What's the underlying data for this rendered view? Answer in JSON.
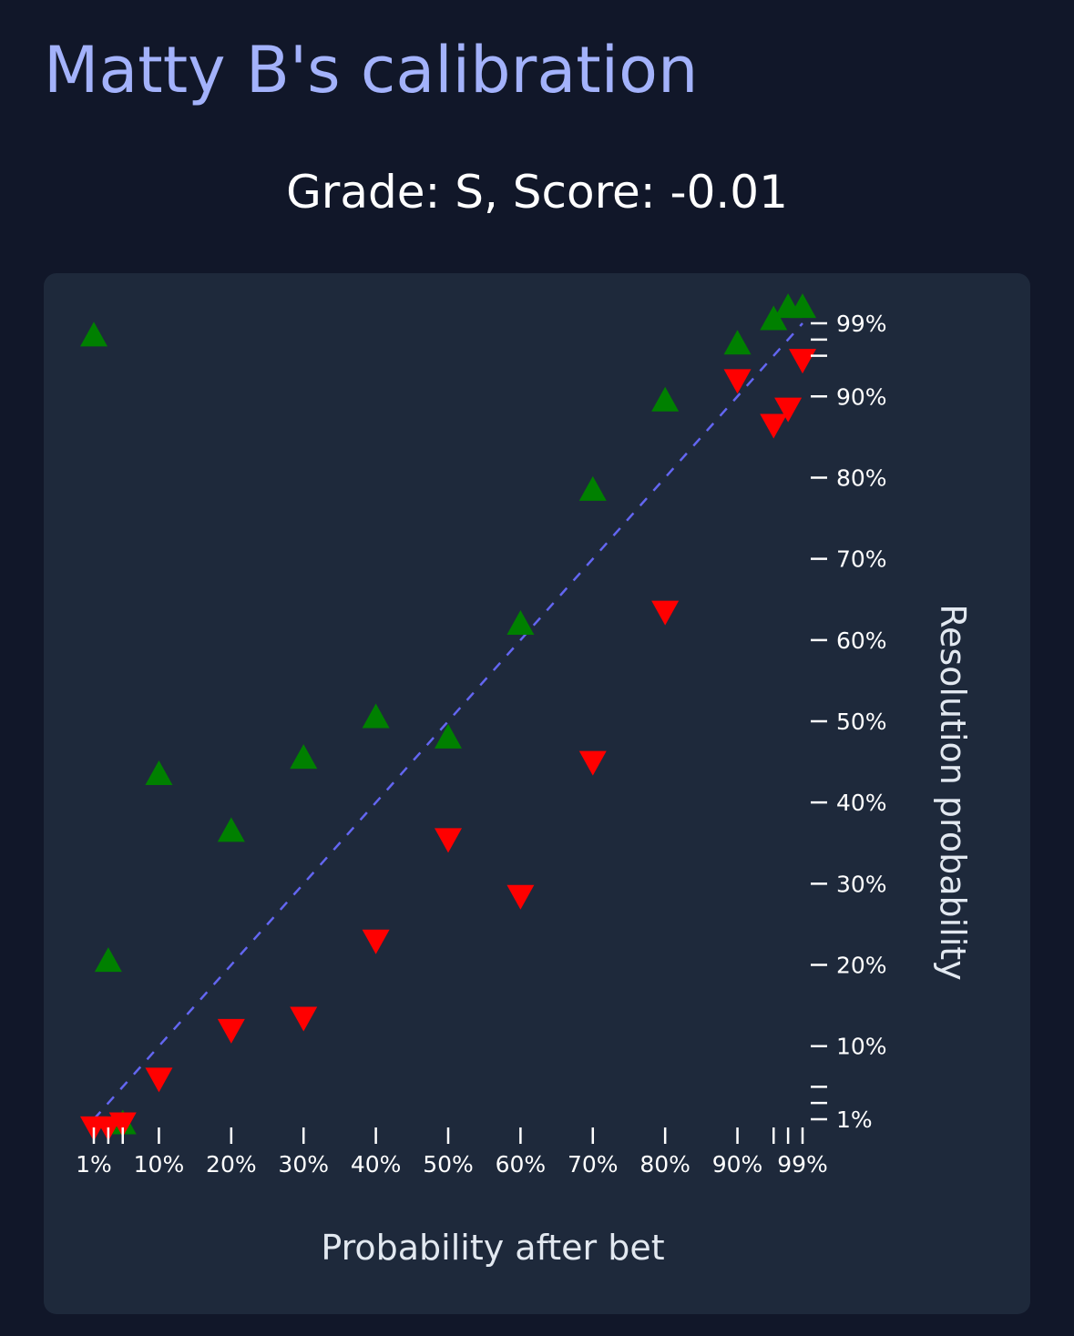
{
  "header": {
    "title": "Matty B's calibration"
  },
  "chart_data": {
    "type": "scatter",
    "title": "Grade: S, Score: -0.01",
    "xlabel": "Probability after bet",
    "ylabel": "Resolution probability",
    "xlim": [
      1,
      99
    ],
    "ylim": [
      1,
      99
    ],
    "x_ticks": [
      1,
      10,
      20,
      30,
      40,
      50,
      60,
      70,
      80,
      90,
      99
    ],
    "x_tick_labels": [
      "1%",
      "10%",
      "20%",
      "30%",
      "40%",
      "50%",
      "60%",
      "70%",
      "80%",
      "90%",
      "99%"
    ],
    "x_minor_ticks": [
      3,
      5,
      95,
      97
    ],
    "y_ticks": [
      1,
      10,
      20,
      30,
      40,
      50,
      60,
      70,
      80,
      90,
      99
    ],
    "y_tick_labels": [
      "1%",
      "10%",
      "20%",
      "30%",
      "40%",
      "50%",
      "60%",
      "70%",
      "80%",
      "90%",
      "99%"
    ],
    "y_minor_ticks": [
      3,
      5,
      95,
      97
    ],
    "reference_line": {
      "from": [
        1,
        1
      ],
      "to": [
        99,
        99
      ],
      "style": "dashed",
      "color": "#6366f1"
    },
    "series": [
      {
        "marker": "triangle-up",
        "color": "#008000",
        "points": [
          {
            "x": 1,
            "y": 97.5
          },
          {
            "x": 3,
            "y": 20.5
          },
          {
            "x": 5,
            "y": 0.5
          },
          {
            "x": 10,
            "y": 43.5
          },
          {
            "x": 20,
            "y": 36.5
          },
          {
            "x": 30,
            "y": 45.5
          },
          {
            "x": 40,
            "y": 50.5
          },
          {
            "x": 50,
            "y": 48
          },
          {
            "x": 60,
            "y": 62
          },
          {
            "x": 70,
            "y": 78.5
          },
          {
            "x": 80,
            "y": 89.5
          },
          {
            "x": 90,
            "y": 96.5
          },
          {
            "x": 95,
            "y": 99.5
          },
          {
            "x": 97,
            "y": 101
          },
          {
            "x": 99,
            "y": 101
          }
        ]
      },
      {
        "marker": "triangle-down",
        "color": "#ff0000",
        "points": [
          {
            "x": 1,
            "y": 0
          },
          {
            "x": 3,
            "y": 0
          },
          {
            "x": 5,
            "y": 0.5
          },
          {
            "x": 10,
            "y": 6
          },
          {
            "x": 20,
            "y": 12
          },
          {
            "x": 30,
            "y": 13.5
          },
          {
            "x": 40,
            "y": 23
          },
          {
            "x": 50,
            "y": 35.5
          },
          {
            "x": 60,
            "y": 28.5
          },
          {
            "x": 70,
            "y": 45
          },
          {
            "x": 80,
            "y": 63.5
          },
          {
            "x": 90,
            "y": 92
          },
          {
            "x": 95,
            "y": 86.5
          },
          {
            "x": 97,
            "y": 88.5
          },
          {
            "x": 99,
            "y": 94.5
          }
        ]
      }
    ]
  }
}
